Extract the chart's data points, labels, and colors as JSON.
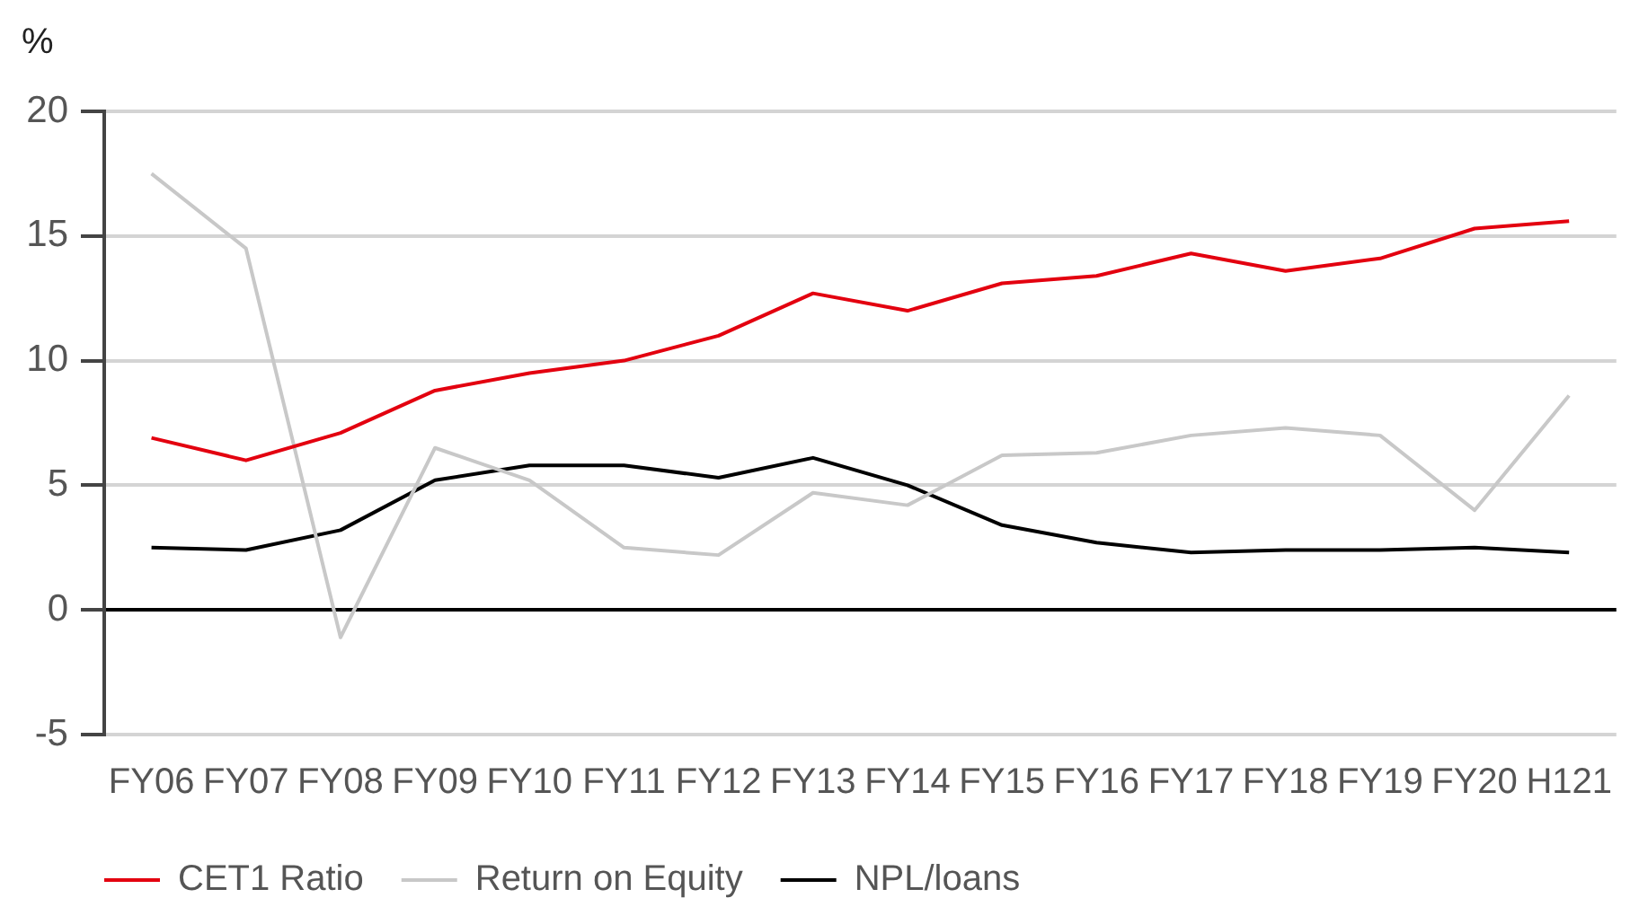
{
  "chart_data": {
    "type": "line",
    "ylabel": "%",
    "categories": [
      "FY06",
      "FY07",
      "FY08",
      "FY09",
      "FY10",
      "FY11",
      "FY12",
      "FY13",
      "FY14",
      "FY15",
      "FY16",
      "FY17",
      "FY18",
      "FY19",
      "FY20",
      "H121"
    ],
    "series": [
      {
        "name": "CET1 Ratio",
        "color": "#e3000f",
        "values": [
          6.9,
          6.0,
          7.1,
          8.8,
          9.5,
          10.0,
          11.0,
          12.7,
          12.0,
          13.1,
          13.4,
          14.3,
          13.6,
          14.1,
          15.3,
          15.6
        ]
      },
      {
        "name": "Return on Equity",
        "color": "#c8c8c8",
        "values": [
          17.5,
          14.5,
          -1.1,
          6.5,
          5.2,
          2.5,
          2.2,
          4.7,
          4.2,
          6.2,
          6.3,
          7.0,
          7.3,
          7.0,
          4.0,
          8.6
        ]
      },
      {
        "name": "NPL/loans",
        "color": "#000000",
        "values": [
          2.5,
          2.4,
          3.2,
          5.2,
          5.8,
          5.8,
          5.3,
          6.1,
          5.0,
          3.4,
          2.7,
          2.3,
          2.4,
          2.4,
          2.5,
          2.3
        ]
      }
    ],
    "ylim": [
      -5,
      20
    ],
    "yticks": [
      -5,
      0,
      5,
      10,
      15,
      20
    ],
    "grid": "y",
    "legend": "bottom left",
    "marker": "none",
    "line_style": "solid"
  }
}
